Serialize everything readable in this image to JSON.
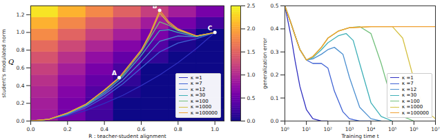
{
  "chart_data": [
    {
      "type": "line",
      "xlabel": "R : teacher-student alignment",
      "ylabel": "student's modulated norm",
      "ysymbol": "Q",
      "xlim": [
        0,
        1.05
      ],
      "ylim": [
        0,
        1.3
      ],
      "xticks": [
        {
          "value": 0,
          "label": "0.0"
        },
        0.2,
        0.4,
        0.6,
        0.8,
        {
          "value": 1,
          "label": "1.0"
        }
      ],
      "yticks": [
        {
          "value": 0,
          "label": "0.0"
        },
        0.2,
        0.4,
        0.6,
        0.8,
        {
          "value": 1,
          "label": "1.0"
        },
        1.2
      ],
      "legend": "lower right",
      "heatmap": {
        "x_edges": [
          0,
          0.15,
          0.3,
          0.45,
          0.6,
          0.75,
          0.9,
          1.05
        ],
        "y_edges": [
          0,
          0.13,
          0.26,
          0.39,
          0.52,
          0.65,
          0.78,
          0.91,
          1.04,
          1.17,
          1.3
        ],
        "values": [
          [
            0.85,
            0.55,
            0.25,
            0,
            0,
            0,
            0
          ],
          [
            0.89,
            0.59,
            0.29,
            0,
            0,
            0,
            0
          ],
          [
            0.96,
            0.66,
            0.36,
            0.06,
            0,
            0,
            0
          ],
          [
            1.06,
            0.76,
            0.46,
            0.16,
            0,
            0,
            0
          ],
          [
            1.19,
            0.89,
            0.59,
            0.29,
            0,
            0,
            0
          ],
          [
            1.36,
            1.06,
            0.76,
            0.46,
            0.16,
            0,
            0
          ],
          [
            1.56,
            1.26,
            0.96,
            0.66,
            0.36,
            0.06,
            0
          ],
          [
            1.8,
            1.5,
            1.2,
            0.9,
            0.6,
            0.3,
            0
          ],
          [
            2.07,
            1.77,
            1.47,
            1.17,
            0.87,
            0.57,
            0.27
          ],
          [
            2.38,
            2.08,
            1.78,
            1.48,
            1.18,
            0.88,
            0.58
          ]
        ],
        "color_range": [
          0,
          2.5
        ],
        "color_ticks": [
          {
            "value": 0,
            "label": "0.0"
          },
          0.5,
          {
            "value": 1,
            "label": "1.0"
          },
          1.5,
          {
            "value": 2,
            "label": "2.0"
          },
          2.5
        ]
      },
      "points": [
        {
          "label": "A",
          "x": 0.48,
          "y": 0.49
        },
        {
          "label": "B",
          "x": 0.7,
          "y": 1.25
        },
        {
          "label": "C",
          "x": 1.0,
          "y": 1.0
        }
      ],
      "series": [
        {
          "name": "κ =1",
          "color": "#3030c0",
          "x": [
            0,
            0.1,
            0.2,
            0.3,
            0.4,
            0.5,
            0.6,
            0.7,
            0.8,
            0.9,
            1.0
          ],
          "values": [
            0,
            0.02,
            0.06,
            0.12,
            0.2,
            0.29,
            0.4,
            0.52,
            0.66,
            0.82,
            1.0
          ]
        },
        {
          "name": "κ =7",
          "color": "#3f62d4",
          "x": [
            0,
            0.1,
            0.2,
            0.3,
            0.4,
            0.5,
            0.6,
            0.7,
            0.8,
            0.9,
            1.0
          ],
          "values": [
            0,
            0.02,
            0.07,
            0.15,
            0.27,
            0.42,
            0.6,
            0.78,
            0.88,
            0.93,
            1.0
          ]
        },
        {
          "name": "κ =12",
          "color": "#4b8fd0",
          "x": [
            0,
            0.1,
            0.2,
            0.3,
            0.4,
            0.5,
            0.6,
            0.7,
            0.8,
            0.9,
            1.0
          ],
          "values": [
            0,
            0.02,
            0.08,
            0.17,
            0.3,
            0.46,
            0.67,
            0.9,
            0.96,
            0.95,
            1.0
          ]
        },
        {
          "name": "κ =30",
          "color": "#3fb0b8",
          "x": [
            0,
            0.1,
            0.2,
            0.3,
            0.4,
            0.5,
            0.6,
            0.7,
            0.75,
            0.8,
            0.9,
            1.0
          ],
          "values": [
            0,
            0.02,
            0.08,
            0.18,
            0.32,
            0.5,
            0.74,
            1.02,
            1.03,
            1.0,
            0.95,
            1.0
          ]
        },
        {
          "name": "κ =100",
          "color": "#73c07c",
          "x": [
            0,
            0.1,
            0.2,
            0.3,
            0.4,
            0.5,
            0.6,
            0.7,
            0.75,
            0.8,
            0.9,
            1.0
          ],
          "values": [
            0,
            0.02,
            0.09,
            0.19,
            0.34,
            0.52,
            0.78,
            1.12,
            1.08,
            1.02,
            0.96,
            1.0
          ]
        },
        {
          "name": "κ =1000",
          "color": "#d4c040",
          "x": [
            0,
            0.1,
            0.2,
            0.3,
            0.4,
            0.48,
            0.6,
            0.65,
            0.7,
            0.75,
            0.8,
            0.9,
            1.0
          ],
          "values": [
            0,
            0.02,
            0.09,
            0.19,
            0.35,
            0.49,
            0.8,
            0.98,
            1.22,
            1.1,
            1.03,
            0.96,
            1.0
          ]
        },
        {
          "name": "κ =100000",
          "color": "#f0a030",
          "x": [
            0,
            0.1,
            0.2,
            0.3,
            0.4,
            0.48,
            0.6,
            0.65,
            0.7,
            0.75,
            0.8,
            0.9,
            1.0
          ],
          "values": [
            0,
            0.02,
            0.09,
            0.19,
            0.35,
            0.49,
            0.8,
            1.0,
            1.25,
            1.12,
            1.04,
            0.96,
            1.0
          ]
        }
      ]
    },
    {
      "type": "line",
      "xlabel": "Training time t",
      "ylabel": "generalization error",
      "log": "x",
      "xlim": [
        1,
        10000000
      ],
      "ylim": [
        0,
        0.5
      ],
      "xticks": [
        {
          "value": 1,
          "label": "10⁰"
        },
        {
          "value": 10,
          "label": "10¹"
        },
        {
          "value": 100,
          "label": "10²"
        },
        {
          "value": 1000,
          "label": "10³"
        },
        {
          "value": 10000,
          "label": "10⁴"
        },
        {
          "value": 100000,
          "label": "10⁵"
        },
        {
          "value": 1000000,
          "label": "10⁶"
        },
        {
          "value": 10000000,
          "label": "10⁷"
        }
      ],
      "yticks": [
        {
          "value": 0,
          "label": "0.0"
        },
        0.1,
        0.2,
        0.3,
        0.4,
        0.5
      ],
      "legend": "lower right",
      "series": [
        {
          "name": "κ =1",
          "color": "#3030c0",
          "x": [
            1,
            2,
            3,
            5,
            10,
            20,
            50,
            100
          ],
          "values": [
            0.5,
            0.36,
            0.26,
            0.15,
            0.05,
            0.01,
            0,
            0
          ]
        },
        {
          "name": "κ =7",
          "color": "#3f62d4",
          "x": [
            1,
            2,
            3,
            5,
            10,
            20,
            50,
            100,
            200,
            500,
            1000,
            3000,
            10000
          ],
          "values": [
            0.5,
            0.42,
            0.37,
            0.31,
            0.265,
            0.25,
            0.25,
            0.23,
            0.13,
            0.04,
            0.01,
            0,
            0
          ]
        },
        {
          "name": "κ =12",
          "color": "#4b8fd0",
          "x": [
            1,
            2,
            3,
            5,
            10,
            20,
            50,
            100,
            200,
            500,
            1000,
            3000,
            10000,
            30000
          ],
          "values": [
            0.5,
            0.42,
            0.37,
            0.31,
            0.265,
            0.27,
            0.29,
            0.31,
            0.32,
            0.29,
            0.19,
            0.06,
            0.01,
            0
          ]
        },
        {
          "name": "κ =30",
          "color": "#3fb0b8",
          "x": [
            1,
            2,
            3,
            5,
            10,
            20,
            50,
            100,
            300,
            700,
            1500,
            3000,
            10000,
            30000,
            100000
          ],
          "values": [
            0.5,
            0.42,
            0.37,
            0.31,
            0.265,
            0.275,
            0.31,
            0.34,
            0.37,
            0.38,
            0.35,
            0.25,
            0.08,
            0.02,
            0
          ]
        },
        {
          "name": "κ =100",
          "color": "#73c07c",
          "x": [
            1,
            2,
            3,
            5,
            10,
            20,
            50,
            100,
            300,
            1000,
            3000,
            10000,
            30000,
            100000,
            300000,
            1000000
          ],
          "values": [
            0.5,
            0.42,
            0.37,
            0.31,
            0.265,
            0.28,
            0.32,
            0.36,
            0.39,
            0.405,
            0.41,
            0.38,
            0.25,
            0.08,
            0.02,
            0
          ]
        },
        {
          "name": "κ =1000",
          "color": "#d4c040",
          "x": [
            1,
            2,
            3,
            5,
            10,
            20,
            50,
            100,
            300,
            1000,
            10000,
            100000,
            300000,
            1000000,
            3000000,
            10000000
          ],
          "values": [
            0.5,
            0.42,
            0.37,
            0.31,
            0.265,
            0.28,
            0.32,
            0.36,
            0.39,
            0.405,
            0.41,
            0.41,
            0.36,
            0.18,
            0.05,
            0.01
          ]
        },
        {
          "name": "κ =100000",
          "color": "#f0a030",
          "x": [
            1,
            2,
            3,
            5,
            10,
            20,
            50,
            100,
            300,
            1000,
            10000,
            100000,
            1000000,
            10000000
          ],
          "values": [
            0.5,
            0.42,
            0.37,
            0.31,
            0.265,
            0.28,
            0.32,
            0.36,
            0.39,
            0.405,
            0.41,
            0.41,
            0.41,
            0.41
          ]
        }
      ]
    }
  ]
}
